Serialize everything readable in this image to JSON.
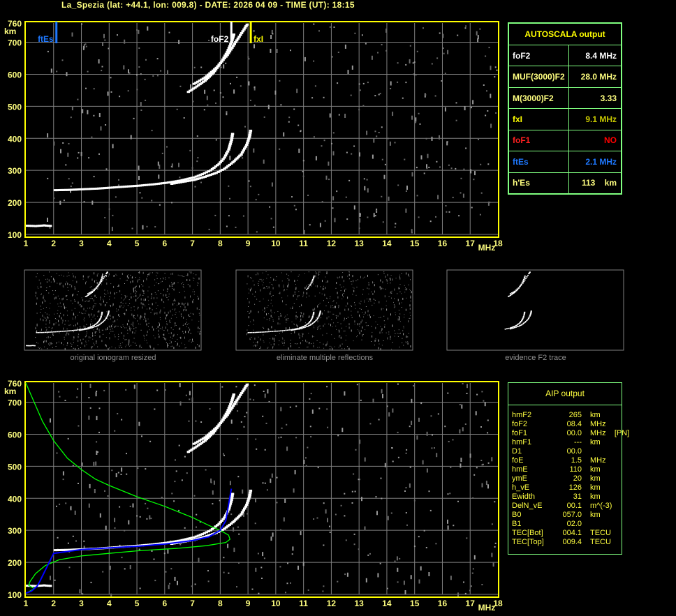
{
  "header": {
    "title": "La_Spezia (lat: +44.1, lon: 009.8) - DATE: 2026 04 09 - TIME (UT): 18:15"
  },
  "colors": {
    "axis": "#ffff00",
    "grid": "#808080",
    "table_border": "#80ff80",
    "ftEs": "#1e78ff",
    "fxI": "#ffff00",
    "foF1": "#ff0000",
    "profile": "#00ff00",
    "fit": "#0000ff"
  },
  "chart_data": [
    {
      "type": "scatter",
      "title": "",
      "xlabel": "MHz",
      "ylabel": "km",
      "xlim": [
        1,
        18
      ],
      "ylim": [
        100,
        760
      ],
      "grid": true,
      "x_ticks": [
        "1",
        "2",
        "3",
        "4",
        "5",
        "6",
        "7",
        "8",
        "9",
        "10",
        "11",
        "12",
        "13",
        "14",
        "15",
        "16",
        "17",
        "18"
      ],
      "y_ticks": [
        "100",
        "200",
        "300",
        "400",
        "500",
        "600",
        "700",
        "760"
      ],
      "markers": [
        {
          "label": "ftEs",
          "freq": 2.1,
          "color": "#1e78ff"
        },
        {
          "label": "foF2",
          "freq": 8.4,
          "color": "#ffffff"
        },
        {
          "label": "fxI",
          "freq": 9.1,
          "color": "#ffff00"
        }
      ],
      "traces": {
        "o_mode": [
          [
            2.0,
            238
          ],
          [
            2.5,
            239
          ],
          [
            3,
            241
          ],
          [
            3.5,
            243
          ],
          [
            4,
            246
          ],
          [
            4.5,
            249
          ],
          [
            5,
            252
          ],
          [
            5.5,
            256
          ],
          [
            6,
            261
          ],
          [
            6.5,
            268
          ],
          [
            7,
            278
          ],
          [
            7.3,
            288
          ],
          [
            7.6,
            300
          ],
          [
            7.9,
            320
          ],
          [
            8.1,
            340
          ],
          [
            8.25,
            365
          ],
          [
            8.35,
            395
          ],
          [
            8.4,
            420
          ]
        ],
        "x_mode": [
          [
            6.2,
            258
          ],
          [
            6.6,
            264
          ],
          [
            7,
            270
          ],
          [
            7.4,
            280
          ],
          [
            7.8,
            292
          ],
          [
            8.1,
            305
          ],
          [
            8.4,
            325
          ],
          [
            8.7,
            350
          ],
          [
            8.9,
            380
          ],
          [
            9.0,
            405
          ],
          [
            9.05,
            430
          ]
        ],
        "o_mode_2hop": [
          [
            6.8,
            545
          ],
          [
            7.1,
            562
          ],
          [
            7.4,
            580
          ],
          [
            7.7,
            605
          ],
          [
            8.0,
            640
          ],
          [
            8.2,
            670
          ],
          [
            8.35,
            700
          ],
          [
            8.45,
            730
          ]
        ],
        "x_mode_2hop": [
          [
            7.0,
            570
          ],
          [
            7.4,
            590
          ],
          [
            7.8,
            620
          ],
          [
            8.2,
            660
          ],
          [
            8.5,
            700
          ],
          [
            8.8,
            740
          ],
          [
            8.95,
            760
          ]
        ],
        "es_layer": [
          [
            1.0,
            127
          ],
          [
            1.3,
            126
          ],
          [
            1.6,
            128
          ],
          [
            1.9,
            126
          ]
        ]
      },
      "aip_profile": [
        [
          1.0,
          760
        ],
        [
          1.3,
          700
        ],
        [
          1.6,
          640
        ],
        [
          2.0,
          580
        ],
        [
          2.5,
          525
        ],
        [
          3,
          490
        ],
        [
          3.5,
          460
        ],
        [
          4,
          440
        ],
        [
          5,
          405
        ],
        [
          6,
          375
        ],
        [
          7,
          340
        ],
        [
          7.6,
          315
        ],
        [
          8.0,
          300
        ],
        [
          8.3,
          285
        ],
        [
          8.35,
          272
        ],
        [
          8.2,
          262
        ],
        [
          7.5,
          252
        ],
        [
          6.5,
          244
        ],
        [
          5,
          236
        ],
        [
          4,
          228
        ],
        [
          3,
          220
        ],
        [
          2.2,
          208
        ],
        [
          1.7,
          190
        ],
        [
          1.35,
          165
        ],
        [
          1.15,
          140
        ],
        [
          1.1,
          128
        ],
        [
          1.3,
          118
        ],
        [
          1.1,
          108
        ],
        [
          1.0,
          103
        ]
      ],
      "aip_fit": [
        [
          1.0,
          104
        ],
        [
          1.2,
          110
        ],
        [
          1.4,
          125
        ],
        [
          1.5,
          140
        ],
        [
          2.0,
          228
        ],
        [
          3,
          240
        ],
        [
          4,
          245
        ],
        [
          5,
          250
        ],
        [
          6,
          257
        ],
        [
          7,
          268
        ],
        [
          7.6,
          280
        ],
        [
          8.0,
          300
        ],
        [
          8.2,
          330
        ],
        [
          8.3,
          380
        ],
        [
          8.4,
          430
        ]
      ]
    }
  ],
  "autoscala": {
    "title": "AUTOSCALA output",
    "rows": [
      {
        "label": "foF2",
        "value": "8.4 MHz",
        "label_color": "#ffffff",
        "value_color": "#ffffff"
      },
      {
        "label": "MUF(3000)F2",
        "value": "28.0 MHz",
        "label_color": "#ffff80",
        "value_color": "#ffff80"
      },
      {
        "label": "M(3000)F2",
        "value": "3.33",
        "label_color": "#ffff80",
        "value_color": "#ffff80"
      },
      {
        "label": "fxI",
        "value": "9.1 MHz",
        "label_color": "#ffff00",
        "value_color": "#c8c800"
      },
      {
        "label": "foF1",
        "value": "NO",
        "label_color": "#ff2020",
        "value_color": "#ff0000"
      },
      {
        "label": "ftEs",
        "value": "2.1 MHz",
        "label_color": "#1e78ff",
        "value_color": "#1e78ff"
      },
      {
        "label": "h'Es",
        "value": "113    km",
        "label_color": "#ffff80",
        "value_color": "#ffff80"
      }
    ]
  },
  "thumbnails": [
    {
      "caption": "original ionogram resized"
    },
    {
      "caption": "eliminate multiple reflections"
    },
    {
      "caption": "evidence F2 trace"
    }
  ],
  "aip": {
    "title": "AIP output",
    "rows": [
      {
        "name": "hmF2",
        "value": "265",
        "unit": "km"
      },
      {
        "name": "foF2",
        "value": "08.4",
        "unit": "MHz"
      },
      {
        "name": "foF1",
        "value": "00.0",
        "unit": "MHz    [PN]"
      },
      {
        "name": "hmF1",
        "value": "---",
        "unit": "km"
      },
      {
        "name": "D1",
        "value": "00.0",
        "unit": ""
      },
      {
        "name": "foE",
        "value": "1.5",
        "unit": "MHz"
      },
      {
        "name": "hmE",
        "value": "110",
        "unit": "km"
      },
      {
        "name": "ymE",
        "value": "20",
        "unit": "km"
      },
      {
        "name": "h_vE",
        "value": "126",
        "unit": "km"
      },
      {
        "name": "Ewidth",
        "value": "31",
        "unit": "km"
      },
      {
        "name": "DelN_vE",
        "value": "00.1",
        "unit": "m^(-3)"
      },
      {
        "name": "B0",
        "value": "057.0",
        "unit": "km"
      },
      {
        "name": "B1",
        "value": "02.0",
        "unit": ""
      },
      {
        "name": "TEC[Bot]",
        "value": "004.1",
        "unit": "TECU"
      },
      {
        "name": "TEC[Top]",
        "value": "009.4",
        "unit": "TECU"
      }
    ]
  }
}
